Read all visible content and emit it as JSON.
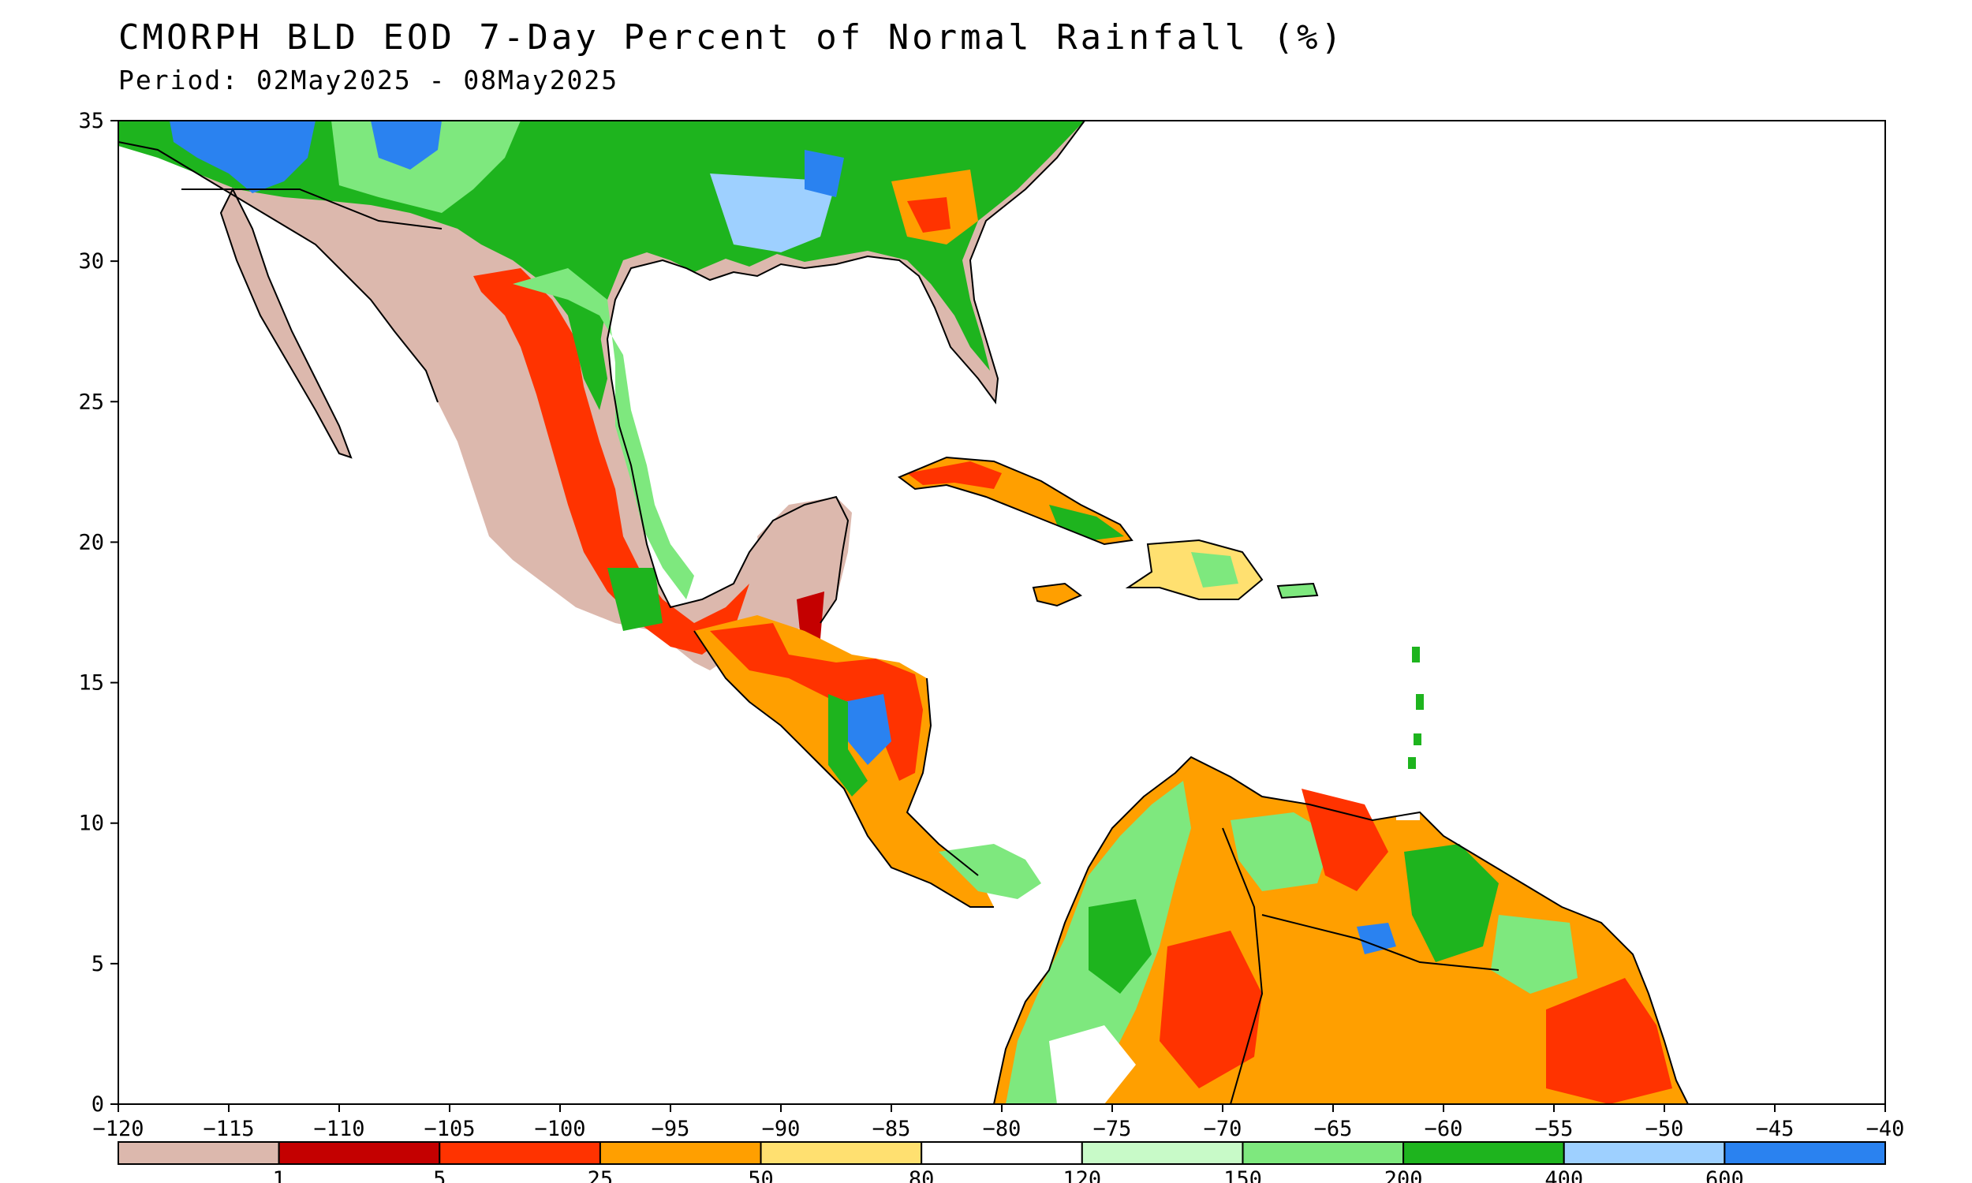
{
  "header": {
    "title": "CMORPH BLD EOD 7-Day Percent of Normal Rainfall (%)",
    "period": "Period: 02May2025 - 08May2025"
  },
  "map": {
    "lon_range": [
      -120,
      -40
    ],
    "lat_range": [
      0,
      35
    ],
    "lon_ticks": [
      "-120",
      "-115",
      "-110",
      "-105",
      "-100",
      "-95",
      "-90",
      "-85",
      "-80",
      "-75",
      "-70",
      "-65",
      "-60",
      "-55",
      "-50",
      "-45",
      "-40"
    ],
    "lat_ticks": [
      "0",
      "5",
      "10",
      "15",
      "20",
      "25",
      "30",
      "35"
    ]
  },
  "colorbar": {
    "colors": [
      "#dcb8ad",
      "#c40000",
      "#ff3300",
      "#ff9f00",
      "#ffe070",
      "#ffffff",
      "#c8fac8",
      "#7ee87e",
      "#1eb41e",
      "#9ed0ff",
      "#2a82f0"
    ],
    "labels": [
      "1",
      "5",
      "25",
      "50",
      "80",
      "120",
      "150",
      "200",
      "400",
      "600"
    ]
  }
}
